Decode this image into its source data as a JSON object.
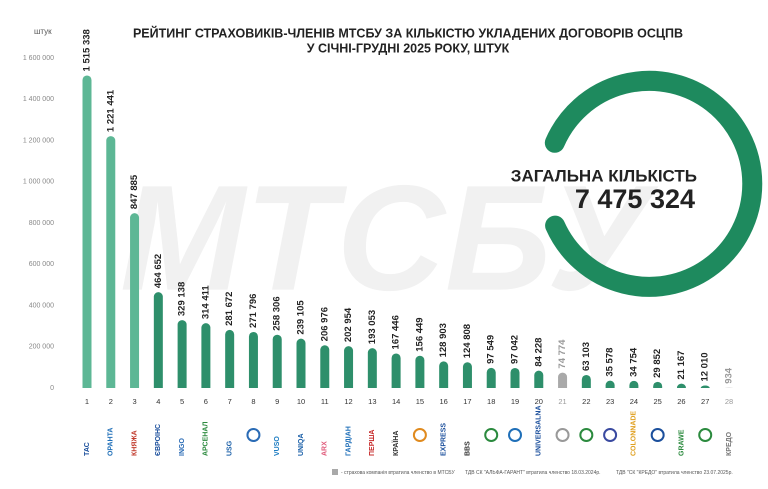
{
  "chart_data": {
    "type": "bar",
    "title": "РЕЙТИНГ СТРАХОВИКІВ-ЧЛЕНІВ МТСБУ ЗА КІЛЬКІСТЮ УКЛАДЕНИХ ДОГОВОРІВ ОСЦПВ",
    "subtitle": "У СІЧНІ-ГРУДНІ 2025 РОКУ, ШТУК",
    "ylabel": "штук",
    "watermark": "МТСБУ",
    "categories": [
      "1",
      "2",
      "3",
      "4",
      "5",
      "6",
      "7",
      "8",
      "9",
      "10",
      "11",
      "12",
      "13",
      "14",
      "15",
      "16",
      "17",
      "18",
      "19",
      "20",
      "21",
      "22",
      "23",
      "24",
      "25",
      "26",
      "27",
      "28"
    ],
    "values": [
      1515338,
      1221441,
      847885,
      464652,
      329138,
      314411,
      281672,
      271796,
      258306,
      239105,
      206976,
      202954,
      193053,
      167446,
      156449,
      128903,
      124808,
      97549,
      97042,
      84228,
      74774,
      63103,
      35578,
      34754,
      29852,
      21167,
      12010,
      934
    ],
    "value_labels": [
      "1 515 338",
      "1 221 441",
      "847 885",
      "464 652",
      "329 138",
      "314 411",
      "281 672",
      "271 796",
      "258 306",
      "239 105",
      "206 976",
      "202 954",
      "193 053",
      "167 446",
      "156 449",
      "128 903",
      "124 808",
      "97 549",
      "97 042",
      "84 228",
      "74 774",
      "63 103",
      "35 578",
      "34 754",
      "29 852",
      "21 167",
      "12 010",
      "934"
    ],
    "colors": [
      "#5db795",
      "#5db795",
      "#5db795",
      "#2e8f6b",
      "#2e8f6b",
      "#2e8f6b",
      "#2e8f6b",
      "#2e8f6b",
      "#2e8f6b",
      "#2e8f6b",
      "#2e8f6b",
      "#2e8f6b",
      "#2e8f6b",
      "#2e8f6b",
      "#2e8f6b",
      "#2e8f6b",
      "#2e8f6b",
      "#2e8f6b",
      "#2e8f6b",
      "#2e8f6b",
      "#a9a9a9",
      "#2e8f6b",
      "#2e8f6b",
      "#2e8f6b",
      "#2e8f6b",
      "#2e8f6b",
      "#2e8f6b",
      "#a9a9a9"
    ],
    "logos": [
      "ТАС",
      "ОРАНТА",
      "КНЯЖА",
      "ЄВРОІНС",
      "INGO",
      "АРСЕНАЛ",
      "USG",
      null,
      "VUSO",
      "UNIQA",
      "ARX",
      "ГАРДІАН",
      "ПЕРША",
      "КРАЇНА",
      null,
      "EXPRESS",
      "BBS",
      null,
      null,
      "UNIVERSALNA",
      null,
      null,
      null,
      "COLONNADE",
      null,
      "GRAWE",
      null,
      "КРЕДО"
    ],
    "ylim": [
      0,
      1600000
    ],
    "yticks": [
      0,
      {
        "value": 200000,
        "label": "200 000"
      },
      {
        "value": 400000,
        "label": "400 000"
      },
      {
        "value": 600000,
        "label": "600 000"
      },
      {
        "value": 800000,
        "label": "800 000"
      },
      {
        "value": 1000000,
        "label": "1 000 000"
      },
      {
        "value": 1200000,
        "label": "1 200 000"
      },
      {
        "value": 1400000,
        "label": "1 400 000"
      },
      {
        "value": 1600000,
        "label": "1 600 000"
      }
    ],
    "total_title": "ЗАГАЛЬНА КІЛЬКІСТЬ",
    "total_value": "7 475 324",
    "footnotes": [
      "- страхова компанія втратила членство в МТСБУ",
      "ТДВ СК \"АЛЬФА-ГАРАНТ\" втратила членство 18.03.2024р.",
      "ТДВ \"СК \"КРЕДО\" втратила членство 23.07.2025р."
    ]
  }
}
